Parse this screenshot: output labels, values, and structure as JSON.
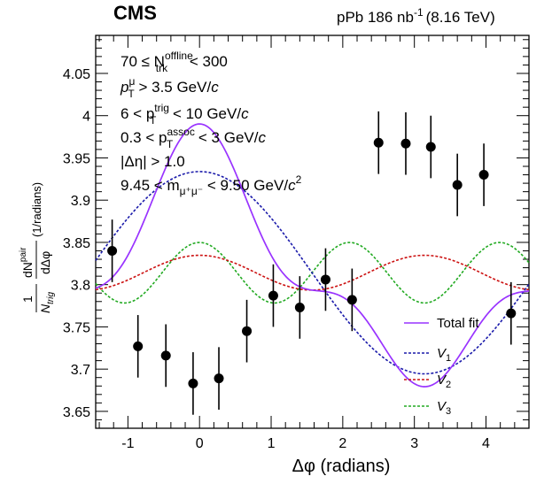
{
  "header": {
    "experiment": "CMS",
    "luminosity": "pPb 186 nb",
    "luminosity_exp": "-1",
    "energy": "(8.16 TeV)"
  },
  "annotations": {
    "line1_pre": "70 ≤ N",
    "line1_sup": "offline",
    "line1_sub": "trk",
    "line1_post": " < 300",
    "line2_pre": "p",
    "line2_sup": "μ",
    "line2_sub": "T",
    "line2_post": " > 3.5 GeV/",
    "line2_italic": "c",
    "line3_pre": "6 < p",
    "line3_sup": "trig",
    "line3_sub": "T",
    "line3_post": " < 10 GeV/",
    "line3_italic": "c",
    "line4_pre": "0.3 < p",
    "line4_sup": "assoc",
    "line4_sub": "T",
    "line4_post": " < 3 GeV/",
    "line4_italic": "c",
    "line5": "|Δη| > 1.0",
    "line6_pre": "9.45 < m",
    "line6_sub": "μ⁺μ⁻",
    "line6_post": " < 9.50 GeV/",
    "line6_italic": "c",
    "line6_sup": "2"
  },
  "axes": {
    "xlabel": "Δφ (radians)",
    "ylabel_frac_num_pre": "1",
    "ylabel_frac_den": "N",
    "ylabel_frac_den_sub": "trig",
    "ylabel_d_num": "dN",
    "ylabel_d_num_sup": "pair",
    "ylabel_d_den": "dΔφ",
    "ylabel_units": "(1/radians)"
  },
  "legend": {
    "total_fit": "Total fit",
    "v1": "V",
    "v1_sub": "1",
    "v2": "V",
    "v2_sub": "2",
    "v3": "V",
    "v3_sub": "3"
  },
  "colors": {
    "total_fit": "#9933ff",
    "v1": "#1a1aaa",
    "v2": "#cc1111",
    "v3": "#22aa22",
    "points": "#000000"
  },
  "chart_data": {
    "type": "scatter",
    "xlim": [
      -1.45,
      4.6
    ],
    "ylim": [
      3.63,
      4.095
    ],
    "xticks_major": [
      -1,
      0,
      1,
      2,
      3,
      4
    ],
    "yticks_major": [
      3.65,
      3.7,
      3.75,
      3.8,
      3.85,
      3.9,
      3.95,
      4.0,
      4.05
    ],
    "ytick_labels": [
      "3.65",
      "3.7",
      "3.75",
      "3.8",
      "3.85",
      "3.9",
      "3.95",
      "4",
      "4.05"
    ],
    "points": [
      {
        "x": -1.22,
        "y": 3.84,
        "err": 0.037
      },
      {
        "x": -0.86,
        "y": 3.727,
        "err": 0.037
      },
      {
        "x": -0.47,
        "y": 3.716,
        "err": 0.037
      },
      {
        "x": -0.09,
        "y": 3.683,
        "err": 0.037
      },
      {
        "x": 0.27,
        "y": 3.689,
        "err": 0.037
      },
      {
        "x": 0.66,
        "y": 3.745,
        "err": 0.037
      },
      {
        "x": 1.03,
        "y": 3.787,
        "err": 0.037
      },
      {
        "x": 1.4,
        "y": 3.773,
        "err": 0.037
      },
      {
        "x": 1.76,
        "y": 3.806,
        "err": 0.037
      },
      {
        "x": 2.13,
        "y": 3.782,
        "err": 0.037
      },
      {
        "x": 2.5,
        "y": 3.968,
        "err": 0.037
      },
      {
        "x": 2.88,
        "y": 3.967,
        "err": 0.037
      },
      {
        "x": 3.23,
        "y": 3.963,
        "err": 0.037
      },
      {
        "x": 3.6,
        "y": 3.918,
        "err": 0.037
      },
      {
        "x": 3.97,
        "y": 3.93,
        "err": 0.037
      },
      {
        "x": 4.35,
        "y": 3.766,
        "err": 0.037
      }
    ],
    "fit": {
      "a0": 3.8141,
      "v1": 0.1197,
      "v2": 0.0206,
      "v3": 0.0358
    }
  }
}
